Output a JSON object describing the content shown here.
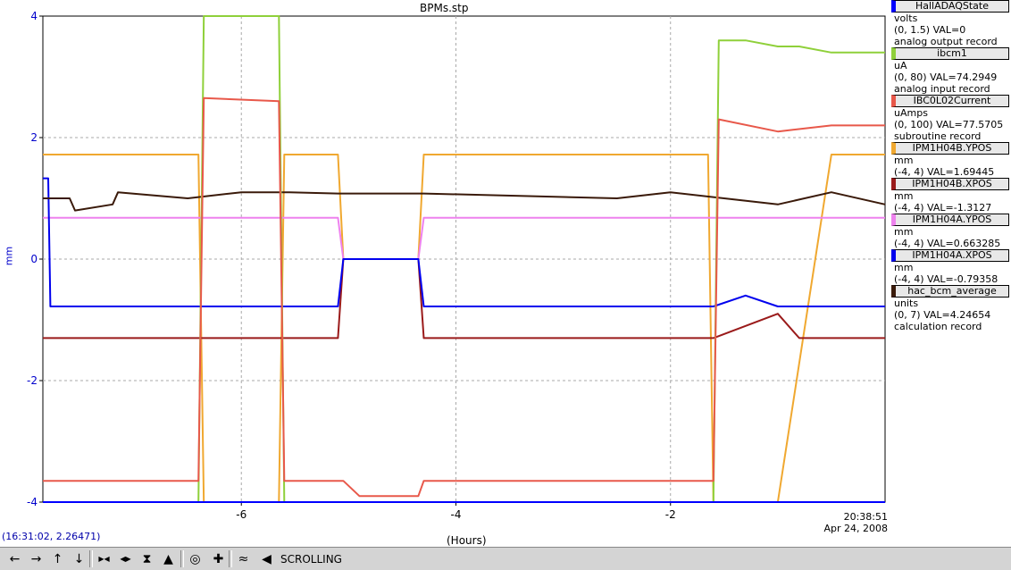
{
  "window": {
    "title": "BPMs.stp",
    "yaxis_label": "mm",
    "xaxis_label": "(Hours)",
    "timestamp_time": "20:38:51",
    "timestamp_date": "Apr 24, 2008",
    "cursor_readout": "(16:31:02, 2.26471)"
  },
  "legend": [
    {
      "name": "HallADAQState",
      "color": "#0000ff",
      "lines": [
        "volts",
        "(0, 1.5) VAL=0",
        "analog output record"
      ]
    },
    {
      "name": "ibcm1",
      "color": "#8fd03a",
      "lines": [
        "uA",
        "(0, 80) VAL=74.2949",
        "analog input record"
      ]
    },
    {
      "name": "IBC0L02Current",
      "color": "#e8584a",
      "lines": [
        "uAmps",
        "(0, 100) VAL=77.5705",
        "subroutine record"
      ]
    },
    {
      "name": "IPM1H04B.YPOS",
      "color": "#f0a830",
      "lines": [
        "mm",
        "(-4, 4) VAL=1.69445"
      ]
    },
    {
      "name": "IPM1H04B.XPOS",
      "color": "#9a1a1a",
      "lines": [
        "mm",
        "(-4, 4) VAL=-1.3127"
      ]
    },
    {
      "name": "IPM1H04A.YPOS",
      "color": "#ee82ee",
      "lines": [
        "mm",
        "(-4, 4) VAL=0.663285"
      ]
    },
    {
      "name": "IPM1H04A.XPOS",
      "color": "#0000ee",
      "lines": [
        "mm",
        "(-4, 4) VAL=-0.79358"
      ]
    },
    {
      "name": "hac_bcm_average",
      "color": "#3a1a0a",
      "lines": [
        "units",
        "(0, 7) VAL=4.24654",
        "calculation record"
      ]
    }
  ],
  "toolbar": {
    "mode_label": "SCROLLING",
    "buttons": [
      "scroll-left-icon",
      "scroll-right-icon",
      "scroll-up-icon",
      "scroll-down-icon",
      "zoom-in-x-icon",
      "zoom-out-x-icon",
      "zoom-in-y-icon",
      "zoom-out-y-icon",
      "reset-icon",
      "crosshair-icon",
      "autoscale-icon",
      "toggle-scroll-icon"
    ]
  },
  "chart_data": {
    "type": "line",
    "title": "BPMs.stp",
    "xlabel": "(Hours)",
    "ylabel": "mm",
    "xlim": [
      -7.85,
      0
    ],
    "ylim": [
      -4,
      4
    ],
    "x_ticks": [
      -6,
      -4,
      -2
    ],
    "y_ticks": [
      -4,
      -2,
      0,
      2,
      4
    ],
    "grid": true,
    "legend_position": "right",
    "series": [
      {
        "name": "IPM1H04B.YPOS",
        "color": "#f0a830",
        "points": [
          [
            -7.85,
            1.72
          ],
          [
            -7.0,
            1.72
          ],
          [
            -6.4,
            1.72
          ],
          [
            -6.35,
            -4
          ],
          [
            -5.65,
            -4
          ],
          [
            -5.6,
            1.72
          ],
          [
            -5.1,
            1.72
          ],
          [
            -5.05,
            0
          ],
          [
            -4.35,
            0
          ],
          [
            -4.3,
            1.72
          ],
          [
            -2.2,
            1.72
          ],
          [
            -1.65,
            1.72
          ],
          [
            -1.6,
            -4
          ],
          [
            -1.0,
            -4
          ],
          [
            -0.5,
            1.72
          ],
          [
            0,
            1.72
          ]
        ]
      },
      {
        "name": "IPM1H04B.XPOS",
        "color": "#9a1a1a",
        "points": [
          [
            -7.85,
            -1.3
          ],
          [
            -5.1,
            -1.3
          ],
          [
            -5.05,
            0
          ],
          [
            -4.35,
            0
          ],
          [
            -4.3,
            -1.3
          ],
          [
            -1.6,
            -1.3
          ],
          [
            -1.0,
            -0.9
          ],
          [
            -0.8,
            -1.3
          ],
          [
            0,
            -1.3
          ]
        ]
      },
      {
        "name": "IPM1H04A.YPOS",
        "color": "#ee82ee",
        "points": [
          [
            -7.85,
            0.68
          ],
          [
            -5.1,
            0.68
          ],
          [
            -5.05,
            0
          ],
          [
            -4.35,
            0
          ],
          [
            -4.3,
            0.68
          ],
          [
            0,
            0.68
          ]
        ]
      },
      {
        "name": "IPM1H04A.XPOS",
        "color": "#0000ee",
        "points": [
          [
            -7.85,
            1.33
          ],
          [
            -7.8,
            1.33
          ],
          [
            -7.78,
            -0.78
          ],
          [
            -5.1,
            -0.78
          ],
          [
            -5.05,
            0
          ],
          [
            -4.35,
            0
          ],
          [
            -4.3,
            -0.78
          ],
          [
            -1.6,
            -0.78
          ],
          [
            -1.3,
            -0.6
          ],
          [
            -1.0,
            -0.78
          ],
          [
            0,
            -0.78
          ]
        ]
      },
      {
        "name": "hac_bcm_average",
        "color": "#3a1a0a",
        "points": [
          [
            -7.85,
            1.0
          ],
          [
            -7.6,
            1.0
          ],
          [
            -7.55,
            0.8
          ],
          [
            -7.2,
            0.9
          ],
          [
            -7.15,
            1.1
          ],
          [
            -6.5,
            1.0
          ],
          [
            -6.0,
            1.1
          ],
          [
            -5.6,
            1.1
          ],
          [
            -5.55,
            1.1
          ],
          [
            -5.1,
            1.08
          ],
          [
            -4.35,
            1.08
          ],
          [
            -4.3,
            1.08
          ],
          [
            -2.5,
            1.0
          ],
          [
            -2.0,
            1.1
          ],
          [
            -1.5,
            1.0
          ],
          [
            -1.0,
            0.9
          ],
          [
            -0.5,
            1.1
          ],
          [
            0,
            0.9
          ]
        ]
      },
      {
        "name": "ibcm1",
        "color": "#8fd03a",
        "points": [
          [
            -6.4,
            -4
          ],
          [
            -6.35,
            4
          ],
          [
            -5.65,
            4
          ],
          [
            -5.6,
            -4
          ],
          [
            -1.6,
            -4
          ],
          [
            -1.55,
            3.6
          ],
          [
            -1.3,
            3.6
          ],
          [
            -1.0,
            3.5
          ],
          [
            -0.8,
            3.5
          ],
          [
            -0.5,
            3.4
          ],
          [
            0,
            3.4
          ]
        ]
      },
      {
        "name": "IBC0L02Current",
        "color": "#e8584a",
        "points": [
          [
            -7.85,
            -3.65
          ],
          [
            -6.4,
            -3.65
          ],
          [
            -6.35,
            2.65
          ],
          [
            -5.65,
            2.6
          ],
          [
            -5.6,
            -3.65
          ],
          [
            -5.05,
            -3.65
          ],
          [
            -4.9,
            -3.9
          ],
          [
            -4.35,
            -3.9
          ],
          [
            -4.3,
            -3.65
          ],
          [
            -2.0,
            -3.65
          ],
          [
            -1.6,
            -3.65
          ],
          [
            -1.55,
            2.3
          ],
          [
            -1.0,
            2.1
          ],
          [
            -0.5,
            2.2
          ],
          [
            0,
            2.2
          ]
        ]
      },
      {
        "name": "HallADAQState",
        "color": "#0000ff",
        "points": [
          [
            -7.85,
            -4
          ],
          [
            0,
            -4
          ]
        ]
      }
    ]
  }
}
